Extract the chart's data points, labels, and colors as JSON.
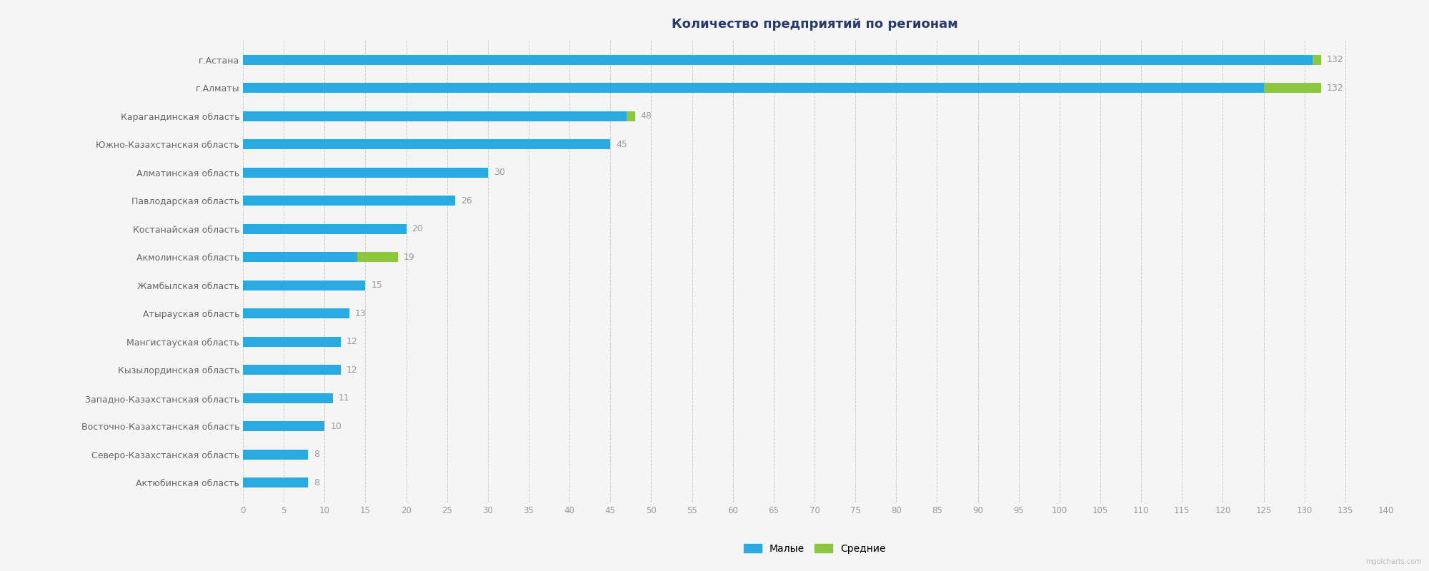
{
  "title": "Количество предприятий по регионам",
  "regions": [
    "г.Астана",
    "г.Алматы",
    "Карагандинская область",
    "Южно-Казахстанская область",
    "Алматинская область",
    "Павлодарская область",
    "Костанайская область",
    "Акмолинская область",
    "Жамбылская область",
    "Атырауская область",
    "Мангистауская область",
    "Кызылординская область",
    "Западно-Казахстанская область",
    "Восточно-Казахстанская область",
    "Северо-Казахстанская область",
    "Актюбинская область"
  ],
  "small_values": [
    131,
    125,
    47,
    45,
    30,
    26,
    20,
    14,
    15,
    13,
    12,
    12,
    11,
    10,
    8,
    8
  ],
  "medium_values": [
    1,
    7,
    1,
    0,
    0,
    0,
    0,
    5,
    0,
    0,
    0,
    0,
    0,
    0,
    0,
    0
  ],
  "totals": [
    132,
    132,
    48,
    45,
    30,
    26,
    20,
    19,
    15,
    13,
    12,
    12,
    11,
    10,
    8,
    8
  ],
  "blue_color": "#29ABE2",
  "green_color": "#8DC63F",
  "bg_color": "#F5F5F5",
  "grid_color": "#CCCCCC",
  "title_color": "#2B3A6B",
  "value_color": "#999999",
  "ytick_color": "#666666",
  "xtick_color": "#999999",
  "legend_blue": "Малые",
  "legend_green": "Средние",
  "xlim": [
    0,
    140
  ],
  "xticks": [
    0,
    5,
    10,
    15,
    20,
    25,
    30,
    35,
    40,
    45,
    50,
    55,
    60,
    65,
    70,
    75,
    80,
    85,
    90,
    95,
    100,
    105,
    110,
    115,
    120,
    125,
    130,
    135,
    140
  ],
  "bar_height": 0.35,
  "figsize": [
    20,
    8
  ],
  "dpi": 100,
  "watermark": "mgolcharts.com"
}
